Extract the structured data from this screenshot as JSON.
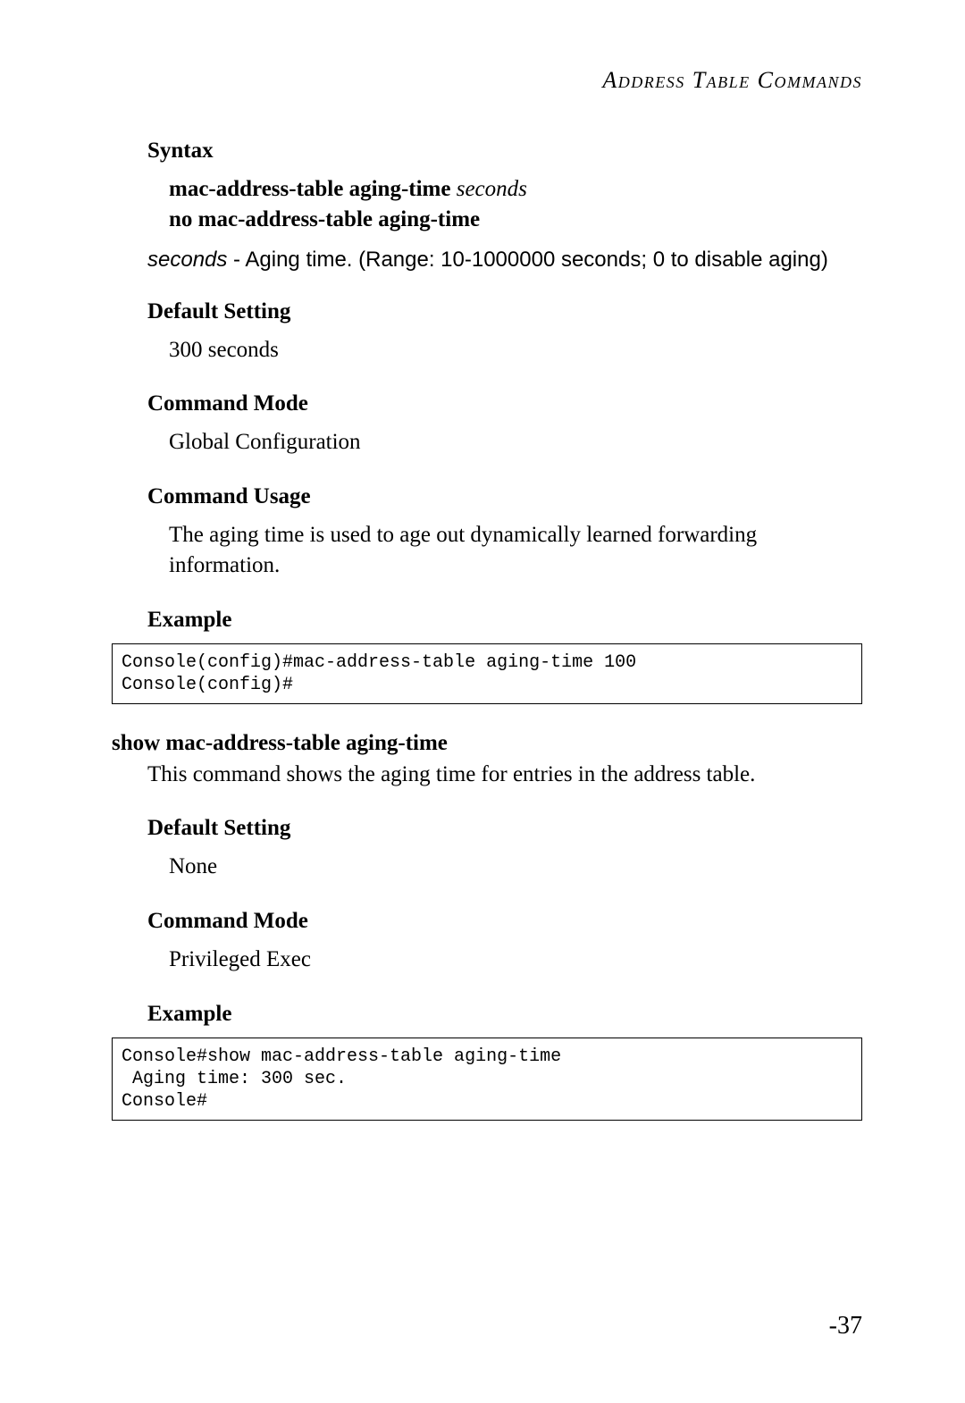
{
  "header": {
    "running_head": "Address Table Commands"
  },
  "sections": {
    "syntax": {
      "heading": "Syntax",
      "line1_bold": "mac-address-table aging-time",
      "line1_param": "seconds",
      "line2": "no mac-address-table aging-time",
      "param_name": "seconds",
      "param_desc": " - Aging time. (Range: 10-1000000 seconds; 0 to disable aging)"
    },
    "default_setting_1": {
      "heading": "Default Setting",
      "body": "300 seconds"
    },
    "command_mode_1": {
      "heading": "Command Mode",
      "body": "Global Configuration"
    },
    "command_usage": {
      "heading": "Command Usage",
      "body": "The aging time is used to age out dynamically learned forwarding information."
    },
    "example_1": {
      "heading": "Example",
      "code": "Console(config)#mac-address-table aging-time 100\nConsole(config)#"
    },
    "cmd2": {
      "title": "show mac-address-table aging-time",
      "desc": "This command shows the aging time for entries in the address table."
    },
    "default_setting_2": {
      "heading": "Default Setting",
      "body": "None"
    },
    "command_mode_2": {
      "heading": "Command Mode",
      "body": "Privileged Exec"
    },
    "example_2": {
      "heading": "Example",
      "code": "Console#show mac-address-table aging-time\n Aging time: 300 sec.\nConsole#"
    }
  },
  "page_number": "-37"
}
